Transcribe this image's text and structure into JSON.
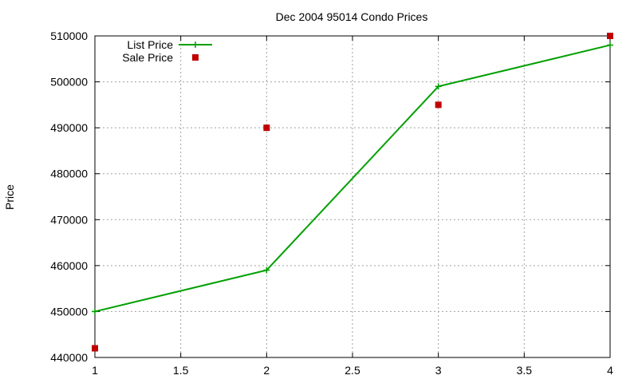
{
  "chart_data": {
    "type": "line",
    "title": "Dec 2004 95014 Condo Prices",
    "xlabel": "",
    "ylabel": "Price",
    "xlim": [
      1,
      4
    ],
    "ylim": [
      440000,
      510000
    ],
    "x_ticks": [
      "1",
      "1.5",
      "2",
      "2.5",
      "3",
      "3.5",
      "4"
    ],
    "y_ticks": [
      "440000",
      "450000",
      "460000",
      "470000",
      "480000",
      "490000",
      "500000",
      "510000"
    ],
    "grid": true,
    "legend_position": "top-left",
    "series": [
      {
        "name": "List Price",
        "style": "lines+crosses",
        "color": "#00a000",
        "x": [
          1,
          2,
          3,
          4
        ],
        "y": [
          450000,
          459000,
          499000,
          508000
        ]
      },
      {
        "name": "Sale Price",
        "style": "squares",
        "color": "#c00000",
        "x": [
          1,
          2,
          3,
          4
        ],
        "y": [
          442000,
          490000,
          495000,
          510000
        ]
      }
    ]
  }
}
